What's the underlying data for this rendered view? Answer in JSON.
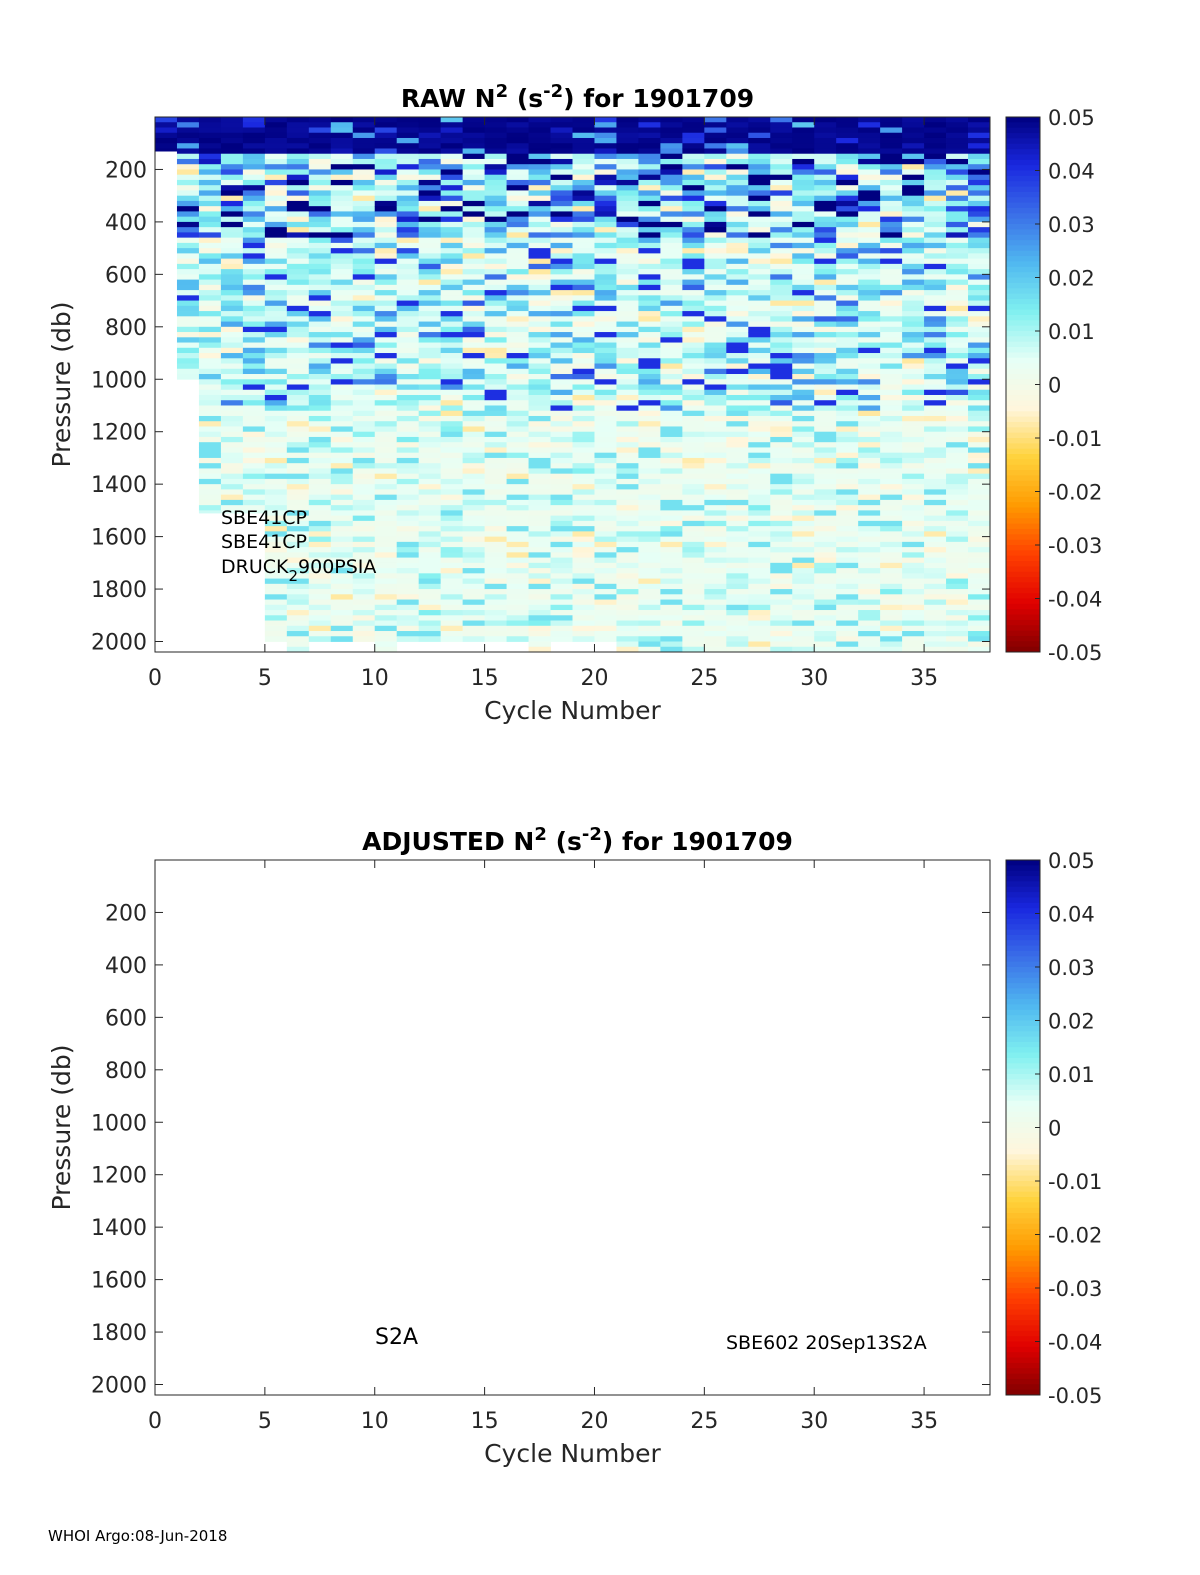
{
  "chart_data": [
    {
      "type": "heatmap",
      "title_main": "RAW N",
      "title_sup1": "2",
      "title_mid": " (s",
      "title_sup2": "-2",
      "title_end": ") for 1901709",
      "xlabel": "Cycle Number",
      "ylabel": "Pressure (db)",
      "xlim": [
        0,
        38
      ],
      "ylim": [
        0,
        2040
      ],
      "y_reversed": true,
      "xticks": [
        "0",
        "5",
        "10",
        "15",
        "20",
        "25",
        "30",
        "35"
      ],
      "yticks": [
        "200",
        "400",
        "600",
        "800",
        "1000",
        "1200",
        "1400",
        "1600",
        "1800",
        "2000"
      ],
      "clim": [
        -0.05,
        0.05
      ],
      "colorbar_ticks": [
        "0.05",
        "0.04",
        "0.03",
        "0.02",
        "0.01",
        "0",
        "-0.01",
        "-0.02",
        "-0.03",
        "-0.04",
        "-0.05"
      ],
      "profile_max_pressure": [
        130,
        1000,
        1510,
        1510,
        1510,
        2000,
        2040,
        2000,
        2000,
        2000,
        2040,
        2000,
        2000,
        2000,
        2000,
        2000,
        2000,
        2040,
        2000,
        2000,
        2000,
        2040,
        2040,
        2040,
        2040,
        2040,
        2040,
        2040,
        2040,
        2040,
        2040,
        2040,
        2040,
        2040,
        2040,
        2040,
        2040,
        2040
      ],
      "value_profile_by_depth": [
        {
          "pressure_max": 130,
          "mean": 0.05
        },
        {
          "pressure_max": 450,
          "mean": 0.02
        },
        {
          "pressure_max": 1100,
          "mean": 0.01
        },
        {
          "pressure_max": 2040,
          "mean": 0.004
        }
      ],
      "annotations": [
        "SBE41CP",
        "SBE41CP",
        "DRUCK",
        "2",
        "900PSIA"
      ]
    },
    {
      "type": "heatmap",
      "title_main": "ADJUSTED N",
      "title_sup1": "2",
      "title_mid": " (s",
      "title_sup2": "-2",
      "title_end": ") for 1901709",
      "xlabel": "Cycle Number",
      "ylabel": "Pressure (db)",
      "xlim": [
        0,
        38
      ],
      "ylim": [
        0,
        2040
      ],
      "y_reversed": true,
      "xticks": [
        "0",
        "5",
        "10",
        "15",
        "20",
        "25",
        "30",
        "35"
      ],
      "yticks": [
        "200",
        "400",
        "600",
        "800",
        "1000",
        "1200",
        "1400",
        "1600",
        "1800",
        "2000"
      ],
      "clim": [
        -0.05,
        0.05
      ],
      "colorbar_ticks": [
        "0.05",
        "0.04",
        "0.03",
        "0.02",
        "0.01",
        "0",
        "-0.01",
        "-0.02",
        "-0.03",
        "-0.04",
        "-0.05"
      ],
      "profile_max_pressure": [],
      "annotations": [
        "S2A",
        "SBE602 20Sep13S2A"
      ]
    }
  ],
  "footer": "WHOI Argo:08-Jun-2018",
  "colormap": [
    "#800000",
    "#e00000",
    "#ff4000",
    "#ff9a00",
    "#ffd23c",
    "#fff6dc",
    "#e6fff6",
    "#80f0f0",
    "#50b8f0",
    "#3a6ee8",
    "#1a28e0",
    "#000080"
  ]
}
